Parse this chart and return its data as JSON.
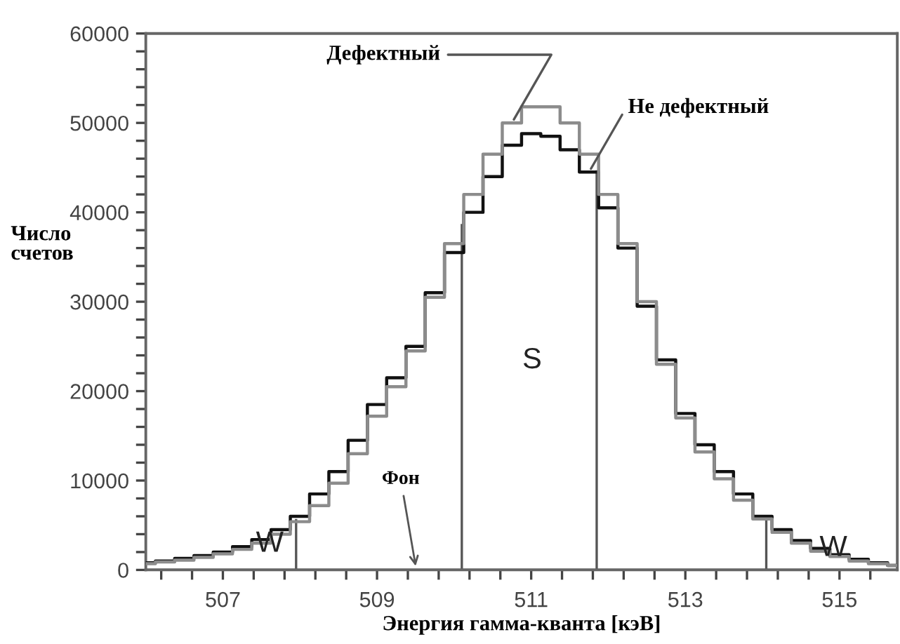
{
  "chart_data": {
    "type": "step",
    "xlabel": "Энергия гамма-кванта [кэВ]",
    "ylabel": "Число\nсчетов",
    "x": [
      506.0,
      506.25,
      506.5,
      506.75,
      507.0,
      507.25,
      507.5,
      507.75,
      508.0,
      508.25,
      508.5,
      508.75,
      509.0,
      509.25,
      509.5,
      509.75,
      510.0,
      510.25,
      510.5,
      510.75,
      511.0,
      511.25,
      511.5,
      511.75,
      512.0,
      512.25,
      512.5,
      512.75,
      513.0,
      513.25,
      513.5,
      513.75,
      514.0,
      514.25,
      514.5,
      514.75,
      515.0,
      515.25,
      515.5,
      515.75
    ],
    "series": [
      {
        "name": "Дефектный",
        "color": "#8c8c8c",
        "values": [
          700,
          900,
          1100,
          1400,
          1800,
          2300,
          3000,
          4000,
          5400,
          7200,
          9700,
          13000,
          17200,
          20500,
          24500,
          30500,
          36500,
          42000,
          46500,
          50000,
          51800,
          51800,
          50000,
          46500,
          42000,
          36500,
          30000,
          23000,
          17000,
          13200,
          10200,
          7800,
          5700,
          4200,
          3000,
          2100,
          1500,
          1000,
          700,
          500
        ]
      },
      {
        "name": "Не дефектный",
        "color": "#111111",
        "values": [
          800,
          1000,
          1300,
          1600,
          2000,
          2600,
          3400,
          4500,
          6000,
          8500,
          11000,
          14500,
          18500,
          21500,
          25000,
          31000,
          35500,
          40000,
          44000,
          47500,
          48800,
          48500,
          47000,
          44500,
          40500,
          36000,
          29500,
          23500,
          17500,
          14000,
          11000,
          8500,
          6000,
          4500,
          3300,
          2400,
          1700,
          1200,
          800,
          500
        ]
      }
    ],
    "xlim": [
      506.0,
      515.75
    ],
    "ylim": [
      0,
      60000
    ],
    "xticks": [
      {
        "value": 506.2,
        "label": null
      },
      {
        "value": 506.6,
        "label": null
      },
      507,
      {
        "value": 507.4,
        "label": null
      },
      {
        "value": 507.8,
        "label": null
      },
      {
        "value": 508.2,
        "label": null
      },
      {
        "value": 508.6,
        "label": null
      },
      509,
      {
        "value": 509.4,
        "label": null
      },
      {
        "value": 509.8,
        "label": null
      },
      {
        "value": 510.2,
        "label": null
      },
      {
        "value": 510.6,
        "label": null
      },
      511,
      {
        "value": 511.4,
        "label": null
      },
      {
        "value": 511.8,
        "label": null
      },
      {
        "value": 512.2,
        "label": null
      },
      {
        "value": 512.6,
        "label": null
      },
      513,
      {
        "value": 513.4,
        "label": null
      },
      {
        "value": 513.8,
        "label": null
      },
      {
        "value": 514.2,
        "label": null
      },
      {
        "value": 514.6,
        "label": null
      },
      515,
      {
        "value": 515.4,
        "label": null
      }
    ],
    "yticks": [
      0,
      {
        "value": 2000,
        "label": null
      },
      {
        "value": 4000,
        "label": null
      },
      {
        "value": 6000,
        "label": null
      },
      {
        "value": 8000,
        "label": null
      },
      10000,
      {
        "value": 12000,
        "label": null
      },
      {
        "value": 14000,
        "label": null
      },
      {
        "value": 16000,
        "label": null
      },
      {
        "value": 18000,
        "label": null
      },
      20000,
      {
        "value": 22000,
        "label": null
      },
      {
        "value": 24000,
        "label": null
      },
      {
        "value": 26000,
        "label": null
      },
      {
        "value": 28000,
        "label": null
      },
      30000,
      {
        "value": 32000,
        "label": null
      },
      {
        "value": 34000,
        "label": null
      },
      {
        "value": 36000,
        "label": null
      },
      {
        "value": 38000,
        "label": null
      },
      40000,
      {
        "value": 42000,
        "label": null
      },
      {
        "value": 44000,
        "label": null
      },
      {
        "value": 46000,
        "label": null
      },
      {
        "value": 48000,
        "label": null
      },
      50000,
      {
        "value": 52000,
        "label": null
      },
      {
        "value": 54000,
        "label": null
      },
      {
        "value": 56000,
        "label": null
      },
      {
        "value": 58000,
        "label": null
      },
      60000
    ],
    "ref_lines": [
      {
        "axis": "x",
        "value": 507.95,
        "color": "#555555"
      },
      {
        "axis": "x",
        "value": 510.1,
        "color": "#555555"
      },
      {
        "axis": "x",
        "value": 511.85,
        "color": "#555555"
      },
      {
        "axis": "x",
        "value": 514.05,
        "color": "#555555"
      }
    ],
    "annotations": [
      "W",
      "S",
      "W",
      "Фон"
    ],
    "grid": false,
    "legend": false,
    "marker": "none",
    "line_style": "solid"
  }
}
